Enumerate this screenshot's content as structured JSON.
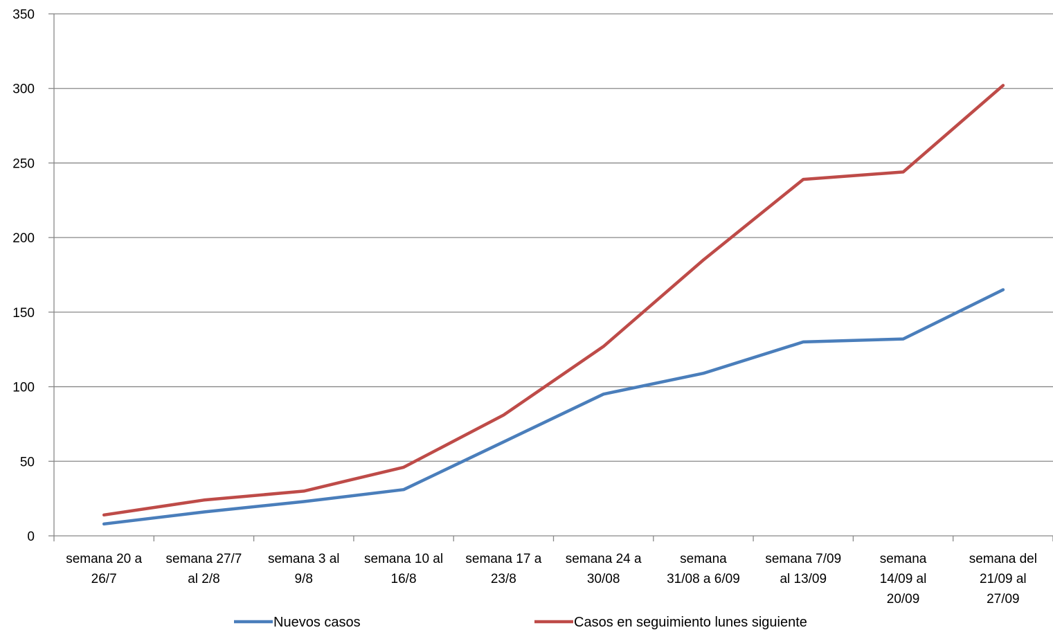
{
  "chart_data": {
    "type": "line",
    "categories": [
      [
        "semana 20 a",
        "26/7"
      ],
      [
        "semana 27/7",
        "al 2/8"
      ],
      [
        "semana 3 al",
        "9/8"
      ],
      [
        "semana 10 al",
        "16/8"
      ],
      [
        "semana 17 a",
        "23/8"
      ],
      [
        "semana 24 a",
        "30/08"
      ],
      [
        "semana",
        "31/08 a 6/09"
      ],
      [
        "semana 7/09",
        "al 13/09"
      ],
      [
        "semana",
        "14/09 al",
        "20/09"
      ],
      [
        "semana del",
        "21/09 al",
        "27/09"
      ]
    ],
    "series": [
      {
        "name": "Nuevos casos",
        "color": "#4a7ebb",
        "values": [
          8,
          16,
          23,
          31,
          63,
          95,
          109,
          130,
          132,
          165
        ]
      },
      {
        "name": "Casos en seguimiento lunes siguiente",
        "color": "#be4b48",
        "values": [
          14,
          24,
          30,
          46,
          81,
          127,
          185,
          239,
          244,
          302
        ]
      }
    ],
    "ylim": [
      0,
      350
    ],
    "yticks": [
      0,
      50,
      100,
      150,
      200,
      250,
      300,
      350
    ],
    "grid": true,
    "legend": "bottom",
    "title": "",
    "xlabel": "",
    "ylabel": ""
  }
}
